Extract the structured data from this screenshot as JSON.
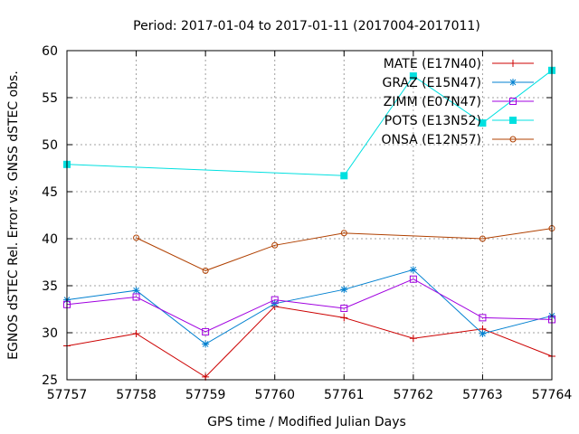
{
  "chart_data": {
    "type": "line",
    "title": "Period: 2017-01-04 to 2017-01-11 (2017004-2017011)",
    "xlabel": "GPS time / Modified Julian Days",
    "ylabel": "EGNOS dSTEC Rel. Error vs. GNSS dSTEC obs.",
    "xlim": [
      57757,
      57764
    ],
    "ylim": [
      25,
      60
    ],
    "xticks": [
      "57757",
      "57758",
      "57759",
      "57760",
      "57761",
      "57762",
      "57763",
      "57764"
    ],
    "yticks": [
      "25",
      "30",
      "35",
      "40",
      "45",
      "50",
      "55",
      "60"
    ],
    "grid": true,
    "legend_position": "top-right",
    "series": [
      {
        "name": "MATE (E17N40)",
        "color": "#cc0000",
        "marker": "plus",
        "points": [
          [
            57757,
            28.6
          ],
          [
            57758,
            29.9
          ],
          [
            57759,
            25.3
          ],
          [
            57760,
            32.8
          ],
          [
            57761,
            31.6
          ],
          [
            57762,
            29.4
          ],
          [
            57763,
            30.4
          ],
          [
            57764,
            27.5
          ]
        ]
      },
      {
        "name": "GRAZ (E15N47)",
        "color": "#0080d0",
        "marker": "star",
        "points": [
          [
            57757,
            33.5
          ],
          [
            57758,
            34.5
          ],
          [
            57759,
            28.8
          ],
          [
            57760,
            33.1
          ],
          [
            57761,
            34.6
          ],
          [
            57762,
            36.7
          ],
          [
            57763,
            29.9
          ],
          [
            57764,
            31.8
          ]
        ]
      },
      {
        "name": "ZIMM (E07N47)",
        "color": "#a000e0",
        "marker": "square-open",
        "points": [
          [
            57757,
            33.0
          ],
          [
            57758,
            33.8
          ],
          [
            57759,
            30.1
          ],
          [
            57760,
            33.5
          ],
          [
            57761,
            32.6
          ],
          [
            57762,
            35.7
          ],
          [
            57763,
            31.6
          ],
          [
            57764,
            31.4
          ]
        ]
      },
      {
        "name": "POTS (E13N52)",
        "color": "#00e0e0",
        "marker": "square-filled",
        "points": [
          [
            57757,
            47.9
          ],
          [
            57761,
            46.7
          ],
          [
            57762,
            57.3
          ],
          [
            57763,
            52.3
          ],
          [
            57764,
            57.9
          ]
        ]
      },
      {
        "name": "ONSA (E12N57)",
        "color": "#b04000",
        "marker": "circle-open",
        "points": [
          [
            57758,
            40.1
          ],
          [
            57759,
            36.6
          ],
          [
            57760,
            39.3
          ],
          [
            57761,
            40.6
          ],
          [
            57763,
            40.0
          ],
          [
            57764,
            41.1
          ]
        ]
      }
    ]
  }
}
